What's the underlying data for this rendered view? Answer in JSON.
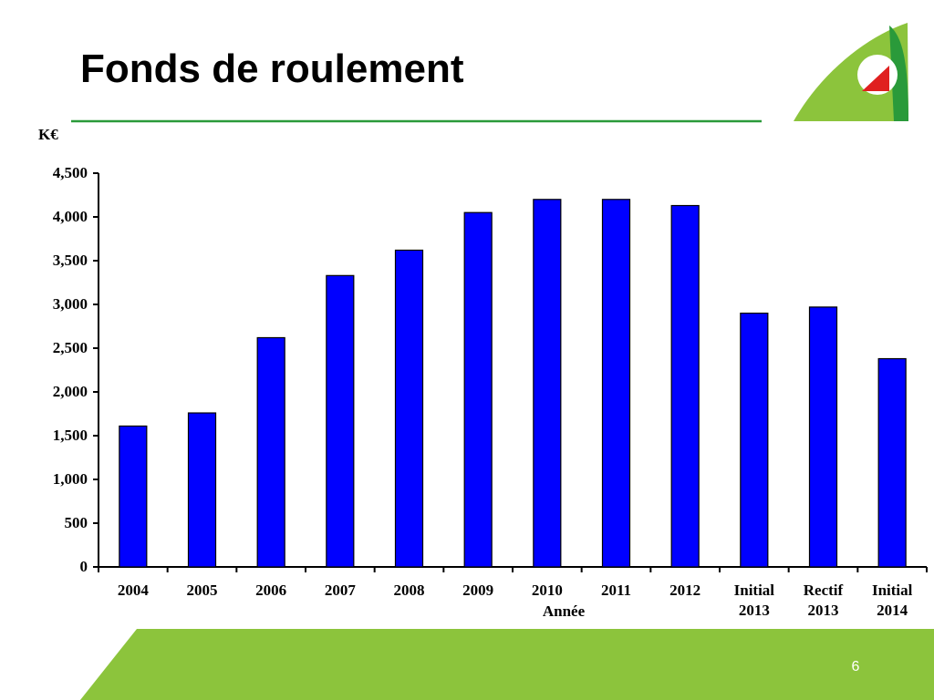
{
  "chart_data": {
    "type": "bar",
    "title": "Fonds de roulement",
    "y_label": "K€",
    "x_label": "Année",
    "page_number": "6",
    "categories": [
      "2004",
      "2005",
      "2006",
      "2007",
      "2008",
      "2009",
      "2010",
      "2011",
      "2012",
      "Initial 2013",
      "Rectif 2013",
      "Initial 2014"
    ],
    "values": [
      1610,
      1760,
      2620,
      3330,
      3620,
      4050,
      4200,
      4200,
      4130,
      2900,
      2970,
      2380
    ],
    "color": "#0000ff",
    "ylim": [
      0,
      4500
    ],
    "yticks": [
      0,
      500,
      {
        "value": 1000,
        "label": "1,000"
      },
      {
        "value": 1500,
        "label": "1,500"
      },
      {
        "value": 2000,
        "label": "2,000"
      },
      {
        "value": 2500,
        "label": "2,500"
      },
      {
        "value": 3000,
        "label": "3,000"
      },
      {
        "value": 3500,
        "label": "3,500"
      },
      {
        "value": 4000,
        "label": "4,000"
      },
      {
        "value": 4500,
        "label": "4,500"
      }
    ],
    "grid": false
  }
}
